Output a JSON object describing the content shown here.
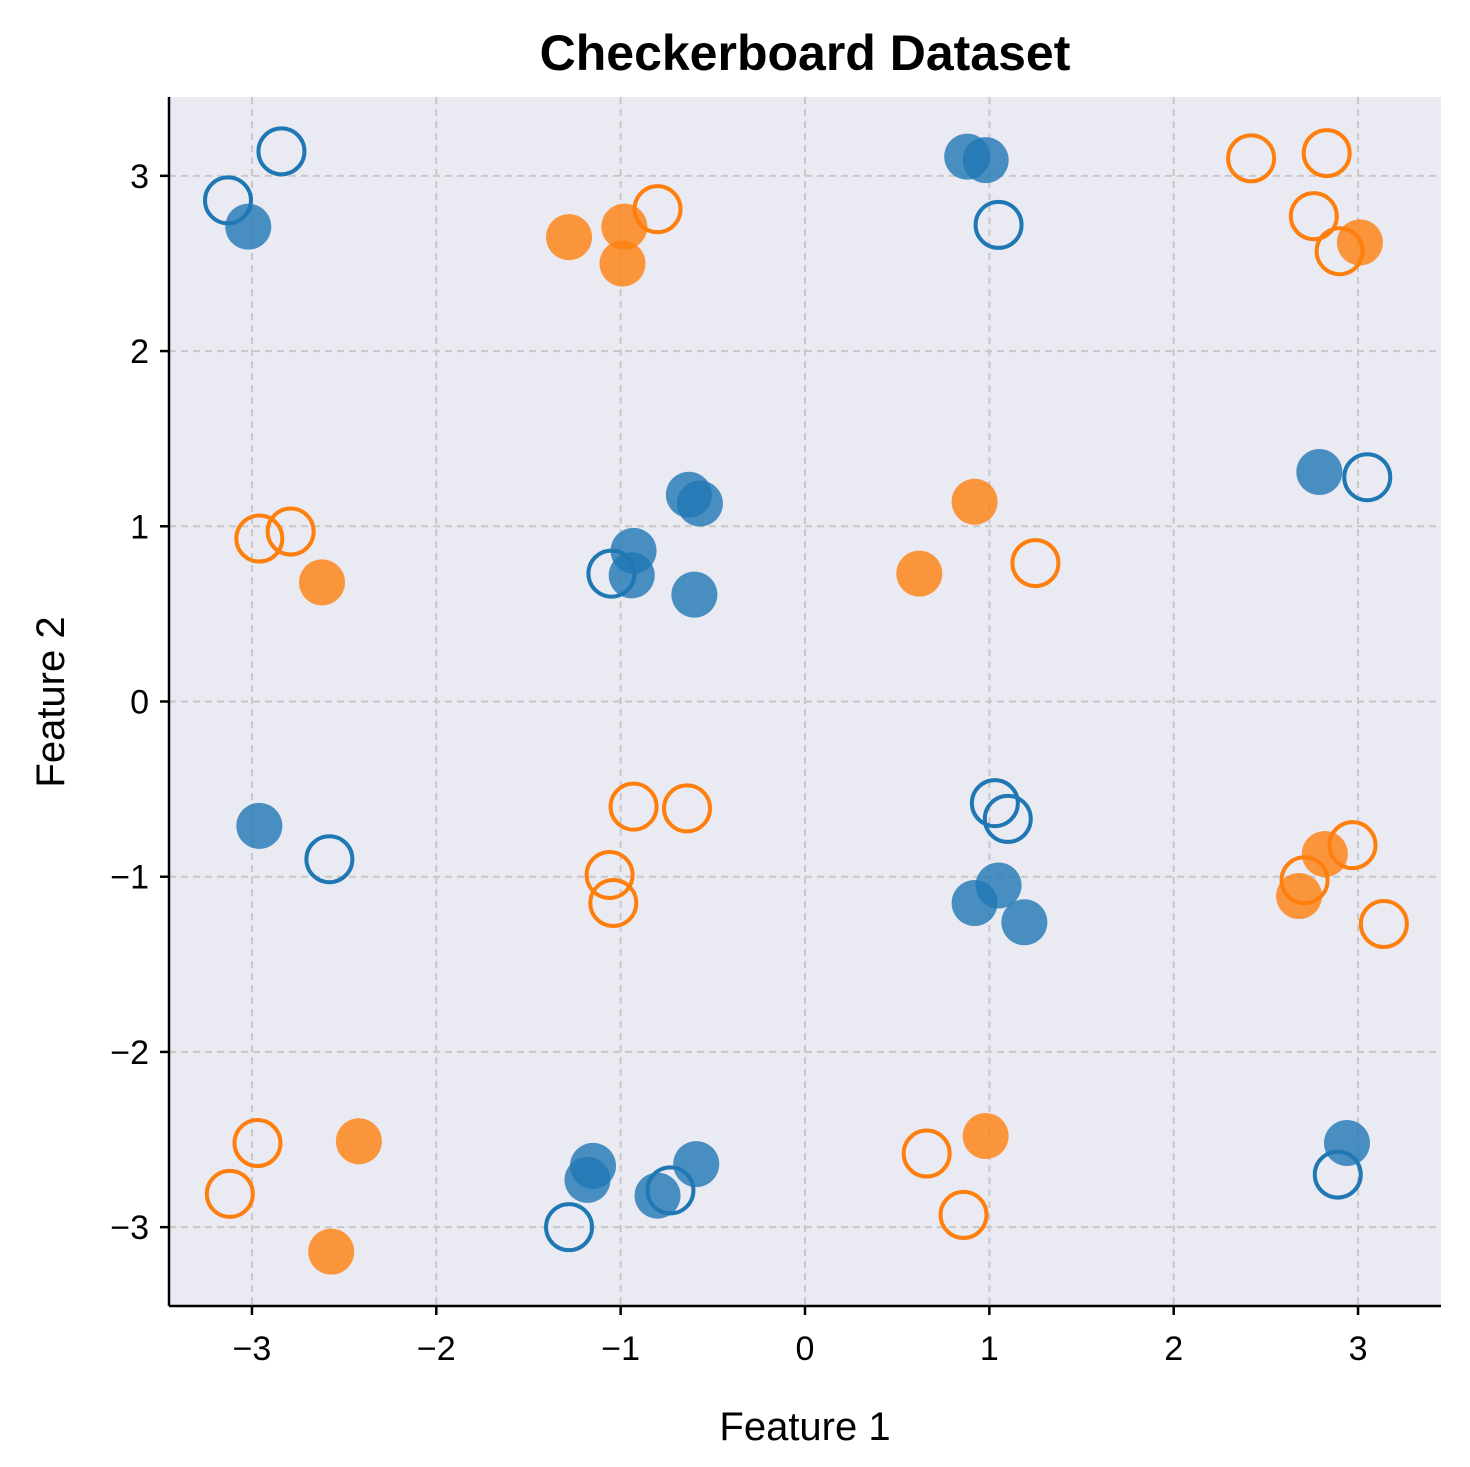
{
  "chart_data": {
    "type": "scatter",
    "title": "Checkerboard Dataset",
    "xlabel": "Feature 1",
    "ylabel": "Feature 2",
    "xlim": [
      -3.45,
      3.45
    ],
    "ylim": [
      -3.45,
      3.45
    ],
    "xticks": [
      -3,
      -2,
      -1,
      0,
      1,
      2,
      3
    ],
    "yticks": [
      -3,
      -2,
      -1,
      0,
      1,
      2,
      3
    ],
    "xtick_labels": [
      "−3",
      "−2",
      "−1",
      "0",
      "1",
      "2",
      "3"
    ],
    "ytick_labels": [
      "−3",
      "−2",
      "−1",
      "0",
      "1",
      "2",
      "3"
    ],
    "grid": true,
    "plot_background": "#e9eaf2",
    "colors": {
      "blue": "#1f77b4",
      "orange": "#ff7f0e"
    },
    "series": [
      {
        "color": "blue",
        "marker": "filled",
        "points": [
          [
            -3.02,
            2.71
          ],
          [
            0.88,
            3.11
          ],
          [
            0.98,
            3.09
          ],
          [
            -0.63,
            1.18
          ],
          [
            -0.57,
            1.13
          ],
          [
            -0.93,
            0.86
          ],
          [
            -0.94,
            0.72
          ],
          [
            -0.6,
            0.61
          ],
          [
            2.79,
            1.31
          ],
          [
            -2.96,
            -0.71
          ],
          [
            0.92,
            -1.15
          ],
          [
            1.05,
            -1.05
          ],
          [
            1.19,
            -1.26
          ],
          [
            -1.15,
            -2.65
          ],
          [
            -1.18,
            -2.73
          ],
          [
            -0.8,
            -2.82
          ],
          [
            -0.59,
            -2.64
          ],
          [
            2.94,
            -2.52
          ]
        ]
      },
      {
        "color": "blue",
        "marker": "hollow",
        "points": [
          [
            -2.84,
            3.14
          ],
          [
            -3.13,
            2.86
          ],
          [
            1.05,
            2.72
          ],
          [
            -1.05,
            0.73
          ],
          [
            3.05,
            1.28
          ],
          [
            -2.58,
            -0.9
          ],
          [
            1.03,
            -0.58
          ],
          [
            1.1,
            -0.67
          ],
          [
            -1.28,
            -3.0
          ],
          [
            -0.73,
            -2.79
          ],
          [
            2.89,
            -2.7
          ]
        ]
      },
      {
        "color": "orange",
        "marker": "filled",
        "points": [
          [
            -1.28,
            2.65
          ],
          [
            -0.98,
            2.71
          ],
          [
            -0.99,
            2.5
          ],
          [
            3.01,
            2.62
          ],
          [
            -2.62,
            0.68
          ],
          [
            0.92,
            1.14
          ],
          [
            0.62,
            0.73
          ],
          [
            2.82,
            -0.87
          ],
          [
            2.68,
            -1.11
          ],
          [
            -2.42,
            -2.51
          ],
          [
            -2.57,
            -3.14
          ],
          [
            0.98,
            -2.48
          ]
        ]
      },
      {
        "color": "orange",
        "marker": "hollow",
        "points": [
          [
            -0.8,
            2.81
          ],
          [
            2.42,
            3.1
          ],
          [
            2.83,
            3.13
          ],
          [
            2.76,
            2.77
          ],
          [
            2.9,
            2.57
          ],
          [
            -2.96,
            0.93
          ],
          [
            -2.79,
            0.97
          ],
          [
            1.25,
            0.79
          ],
          [
            -0.93,
            -0.6
          ],
          [
            -0.64,
            -0.61
          ],
          [
            -1.06,
            -0.99
          ],
          [
            -1.04,
            -1.15
          ],
          [
            2.97,
            -0.82
          ],
          [
            2.71,
            -1.02
          ],
          [
            3.14,
            -1.27
          ],
          [
            -2.97,
            -2.52
          ],
          [
            -3.12,
            -2.81
          ],
          [
            0.66,
            -2.58
          ],
          [
            0.86,
            -2.93
          ]
        ]
      }
    ]
  }
}
